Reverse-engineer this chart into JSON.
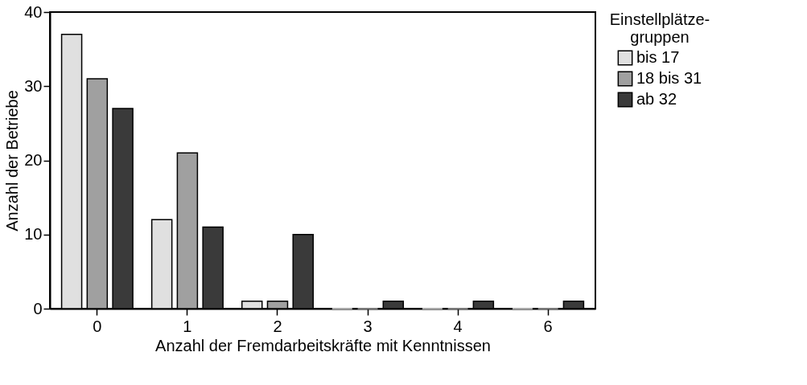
{
  "chart_data": {
    "type": "bar",
    "xlabel": "Anzahl der Fremdarbeitskräfte mit Kenntnissen",
    "ylabel": "Anzahl der Betriebe",
    "legend_title": "Einstellplätze-\ngruppen",
    "legend": "top right",
    "grid": false,
    "categories": [
      "0",
      "1",
      "2",
      "3",
      "4",
      "6"
    ],
    "ylim": [
      0,
      40
    ],
    "yticks": [
      0,
      10,
      20,
      30,
      40
    ],
    "series": [
      {
        "name": "bis 17",
        "color": "#e0e0e0",
        "values": [
          37,
          12,
          1,
          0,
          0,
          0
        ]
      },
      {
        "name": "18 bis 31",
        "color": "#a0a0a0",
        "values": [
          31,
          21,
          1,
          0,
          0,
          0
        ]
      },
      {
        "name": "ab 32",
        "color": "#3a3a3a",
        "values": [
          27,
          11,
          10,
          1,
          1,
          1
        ]
      }
    ]
  }
}
